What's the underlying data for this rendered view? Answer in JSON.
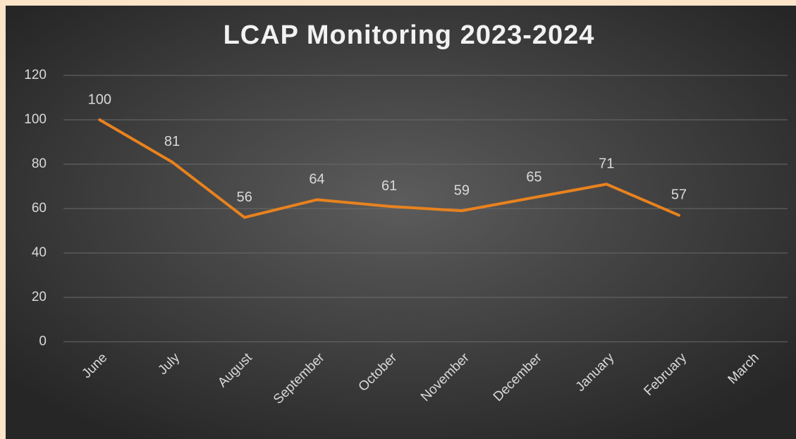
{
  "chart_data": {
    "type": "line",
    "title": "LCAP Monitoring 2023-2024",
    "categories": [
      "June",
      "July",
      "August",
      "September",
      "October",
      "November",
      "December",
      "January",
      "February",
      "March"
    ],
    "values": [
      100,
      81,
      56,
      64,
      61,
      59,
      65,
      71,
      57,
      null
    ],
    "color": "#e8821e",
    "ylim": [
      0,
      120
    ],
    "yticks": [
      0,
      20,
      40,
      60,
      80,
      100,
      120
    ],
    "grid": true
  }
}
